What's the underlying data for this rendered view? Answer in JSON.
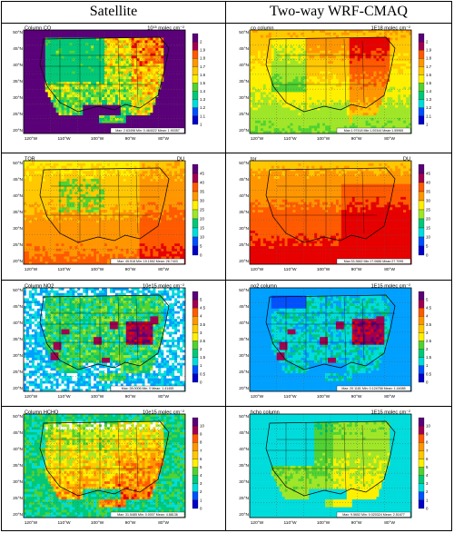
{
  "columns": {
    "left": "Satellite",
    "right": "Two-way WRF-CMAQ"
  },
  "colors": {
    "palette": [
      "#0000c8",
      "#0050ff",
      "#00a0ff",
      "#00dcdc",
      "#00c878",
      "#50d232",
      "#a0e628",
      "#fff000",
      "#ffc800",
      "#ff9600",
      "#ff5a00",
      "#e60000",
      "#a00050",
      "#5a0078"
    ],
    "water": "#ffffff",
    "state_lines": "#000000"
  },
  "axes": {
    "lat_labels": [
      "50°N",
      "45°N",
      "40°N",
      "35°N",
      "30°N",
      "25°N",
      "20°N"
    ],
    "lon_labels": [
      "120°W",
      "110°W",
      "100°W",
      "90°W",
      "80°W",
      "70°W"
    ]
  },
  "panels": [
    {
      "id": "sat-co",
      "title": "Column CO",
      "units": "10¹⁸ molec cm⁻²",
      "stats": "Max: 2.63498  Min: 0.464022  Mean: 1.90357",
      "ticks": [
        "2",
        "1.9",
        "1.8",
        "1.7",
        "1.6",
        "1.5",
        "1.4",
        "1.3",
        "1.2",
        "1.1",
        "1"
      ],
      "fill": "co_sat"
    },
    {
      "id": "mod-co",
      "title": "co column",
      "units": "1E18 molec cm⁻²",
      "stats": "Max:1.97418  Min:1.00344  Mean:1.55965",
      "ticks": [
        "2",
        "1.9",
        "1.8",
        "1.7",
        "1.6",
        "1.5",
        "1.4",
        "1.3",
        "1.2",
        "1.1",
        "1"
      ],
      "fill": "co_mod"
    },
    {
      "id": "sat-tor",
      "title": "TOR",
      "units": "DU",
      "stats": "Max: 45.518  Min: 15.1552  Mean: 26.7403",
      "ticks": [
        "45",
        "40",
        "35",
        "30",
        "25",
        "20",
        "15",
        "10",
        "5",
        "0"
      ],
      "fill": "tor_sat"
    },
    {
      "id": "mod-tor",
      "title": "tor",
      "units": "DU",
      "stats": "Max:33.3662  Min:17.0686  Mean:27.7095",
      "ticks": [
        "45",
        "40",
        "35",
        "30",
        "25",
        "20",
        "15",
        "10",
        "5",
        "0"
      ],
      "fill": "tor_mod"
    },
    {
      "id": "sat-no2",
      "title": "Column NO2",
      "units": "10e15 molec cm⁻²",
      "stats": "Max: 28.0006  Min: 0  Mean: 1.41455",
      "ticks": [
        "5",
        "4.5",
        "4",
        "3.5",
        "3",
        "2.5",
        "2",
        "1.5",
        "1",
        "0.5",
        "0"
      ],
      "fill": "no2_sat"
    },
    {
      "id": "mod-no2",
      "title": "no2 column",
      "units": "1E15 molec cm⁻²",
      "stats": "Max: 20.1181  Min: 0.124758  Mean: 1.44085",
      "ticks": [
        "5",
        "4.5",
        "4",
        "3.5",
        "3",
        "2.5",
        "2",
        "1.5",
        "1",
        "0.5",
        "0"
      ],
      "fill": "no2_mod"
    },
    {
      "id": "sat-hcho",
      "title": "Column HCHO",
      "units": "10e15 molec cm⁻²",
      "stats": "Max: 31.5485  Min: 0.0007  Mean: 4.88136",
      "ticks": [
        "10",
        "9",
        "8",
        "7",
        "6",
        "5",
        "4",
        "3",
        "2",
        "1",
        "0"
      ],
      "fill": "hcho_sat"
    },
    {
      "id": "mod-hcho",
      "title": "hcho column",
      "units": "1E15 molec cm⁻²",
      "stats": "Max: 9.5652  Min: 0.020324  Mean: 2.51677",
      "ticks": [
        "10",
        "9",
        "8",
        "7",
        "6",
        "5",
        "4",
        "3",
        "2",
        "1",
        "0"
      ],
      "fill": "hcho_mod"
    }
  ]
}
